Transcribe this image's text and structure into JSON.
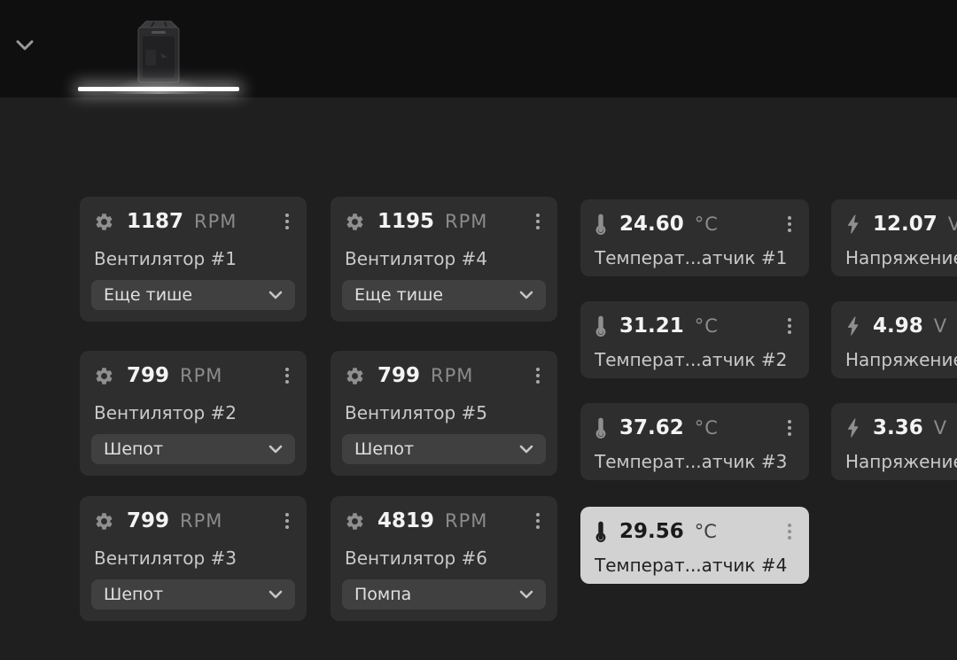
{
  "topbar": {
    "collapse_icon": "chevron-down",
    "device_tab": {
      "icon": "pc-case",
      "selected": true
    }
  },
  "fan_cards": [
    {
      "value": "1187",
      "unit": "RPM",
      "label": "Вентилятор #1",
      "mode": "Еще тише"
    },
    {
      "value": "1195",
      "unit": "RPM",
      "label": "Вентилятор #4",
      "mode": "Еще тише"
    },
    {
      "value": "799",
      "unit": "RPM",
      "label": "Вентилятор #2",
      "mode": "Шепот"
    },
    {
      "value": "799",
      "unit": "RPM",
      "label": "Вентилятор #5",
      "mode": "Шепот"
    },
    {
      "value": "799",
      "unit": "RPM",
      "label": "Вентилятор #3",
      "mode": "Шепот"
    },
    {
      "value": "4819",
      "unit": "RPM",
      "label": "Вентилятор #6",
      "mode": "Помпа"
    }
  ],
  "temperature_cards": [
    {
      "value": "24.60",
      "unit": "°C",
      "label": "Температ...атчик #1",
      "selected": false
    },
    {
      "value": "31.21",
      "unit": "°C",
      "label": "Температ...атчик #2",
      "selected": false
    },
    {
      "value": "37.62",
      "unit": "°C",
      "label": "Температ...атчик #3",
      "selected": false
    },
    {
      "value": "29.56",
      "unit": "°C",
      "label": "Температ...атчик #4",
      "selected": true
    }
  ],
  "voltage_cards": [
    {
      "value": "12.07",
      "unit": "V",
      "label": "Напряжение"
    },
    {
      "value": "4.98",
      "unit": "V",
      "label": "Напряжение"
    },
    {
      "value": "3.36",
      "unit": "V",
      "label": "Напряжение"
    }
  ],
  "colors": {
    "topbar_bg": "#0f0f10",
    "main_bg": "#1f1f1f",
    "card_bg": "#2e2e2e",
    "dropdown_bg": "#404040",
    "value_text": "#f3f3f3",
    "unit_text": "#8b8b8b",
    "label_text": "#c9c9c9",
    "selected_card_bg": "#d2d2d2",
    "selected_text": "#1a1a1a",
    "tab_indicator": "#ffffff"
  }
}
